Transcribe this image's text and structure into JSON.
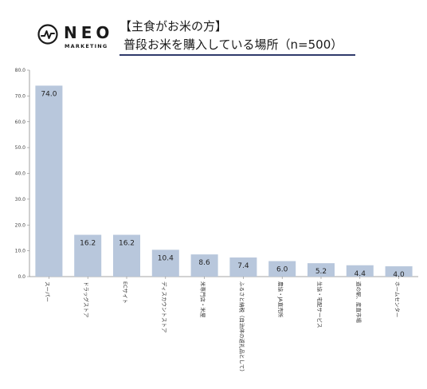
{
  "logo": {
    "word": "NEO",
    "sub": "MARKETING"
  },
  "header": {
    "line1": "【主食がお米の方】",
    "line2": "普段お米を購入している場所（n=500）"
  },
  "colors": {
    "bar": "#b8c7dc",
    "axis": "#888888",
    "rule": "#2f3a6b"
  },
  "chart_data": {
    "type": "bar",
    "categories": [
      "スーパー",
      "ドラッグストア",
      "ECサイト",
      "ディスカウントストア",
      "米専門店・米屋",
      "ふるさと納税（自治体の返礼品として）",
      "農協・JA直売所",
      "生協・宅配サービス",
      "道の駅、産直市場",
      "ホームセンター"
    ],
    "values": [
      74.0,
      16.2,
      16.2,
      10.4,
      8.6,
      7.4,
      6.0,
      5.2,
      4.4,
      4.0
    ],
    "value_labels": [
      "74.0",
      "16.2",
      "16.2",
      "10.4",
      "8.6",
      "7.4",
      "6.0",
      "5.2",
      "4.4",
      "4.0"
    ],
    "ylim": [
      0,
      80
    ],
    "yticks": [
      "0.0",
      "10.0",
      "20.0",
      "30.0",
      "40.0",
      "50.0",
      "60.0",
      "70.0",
      "80.0"
    ],
    "ytick_values": [
      0,
      10,
      20,
      30,
      40,
      50,
      60,
      70,
      80
    ],
    "title": "普段お米を購入している場所（n=500）",
    "xlabel": "",
    "ylabel": "",
    "grid": false
  }
}
